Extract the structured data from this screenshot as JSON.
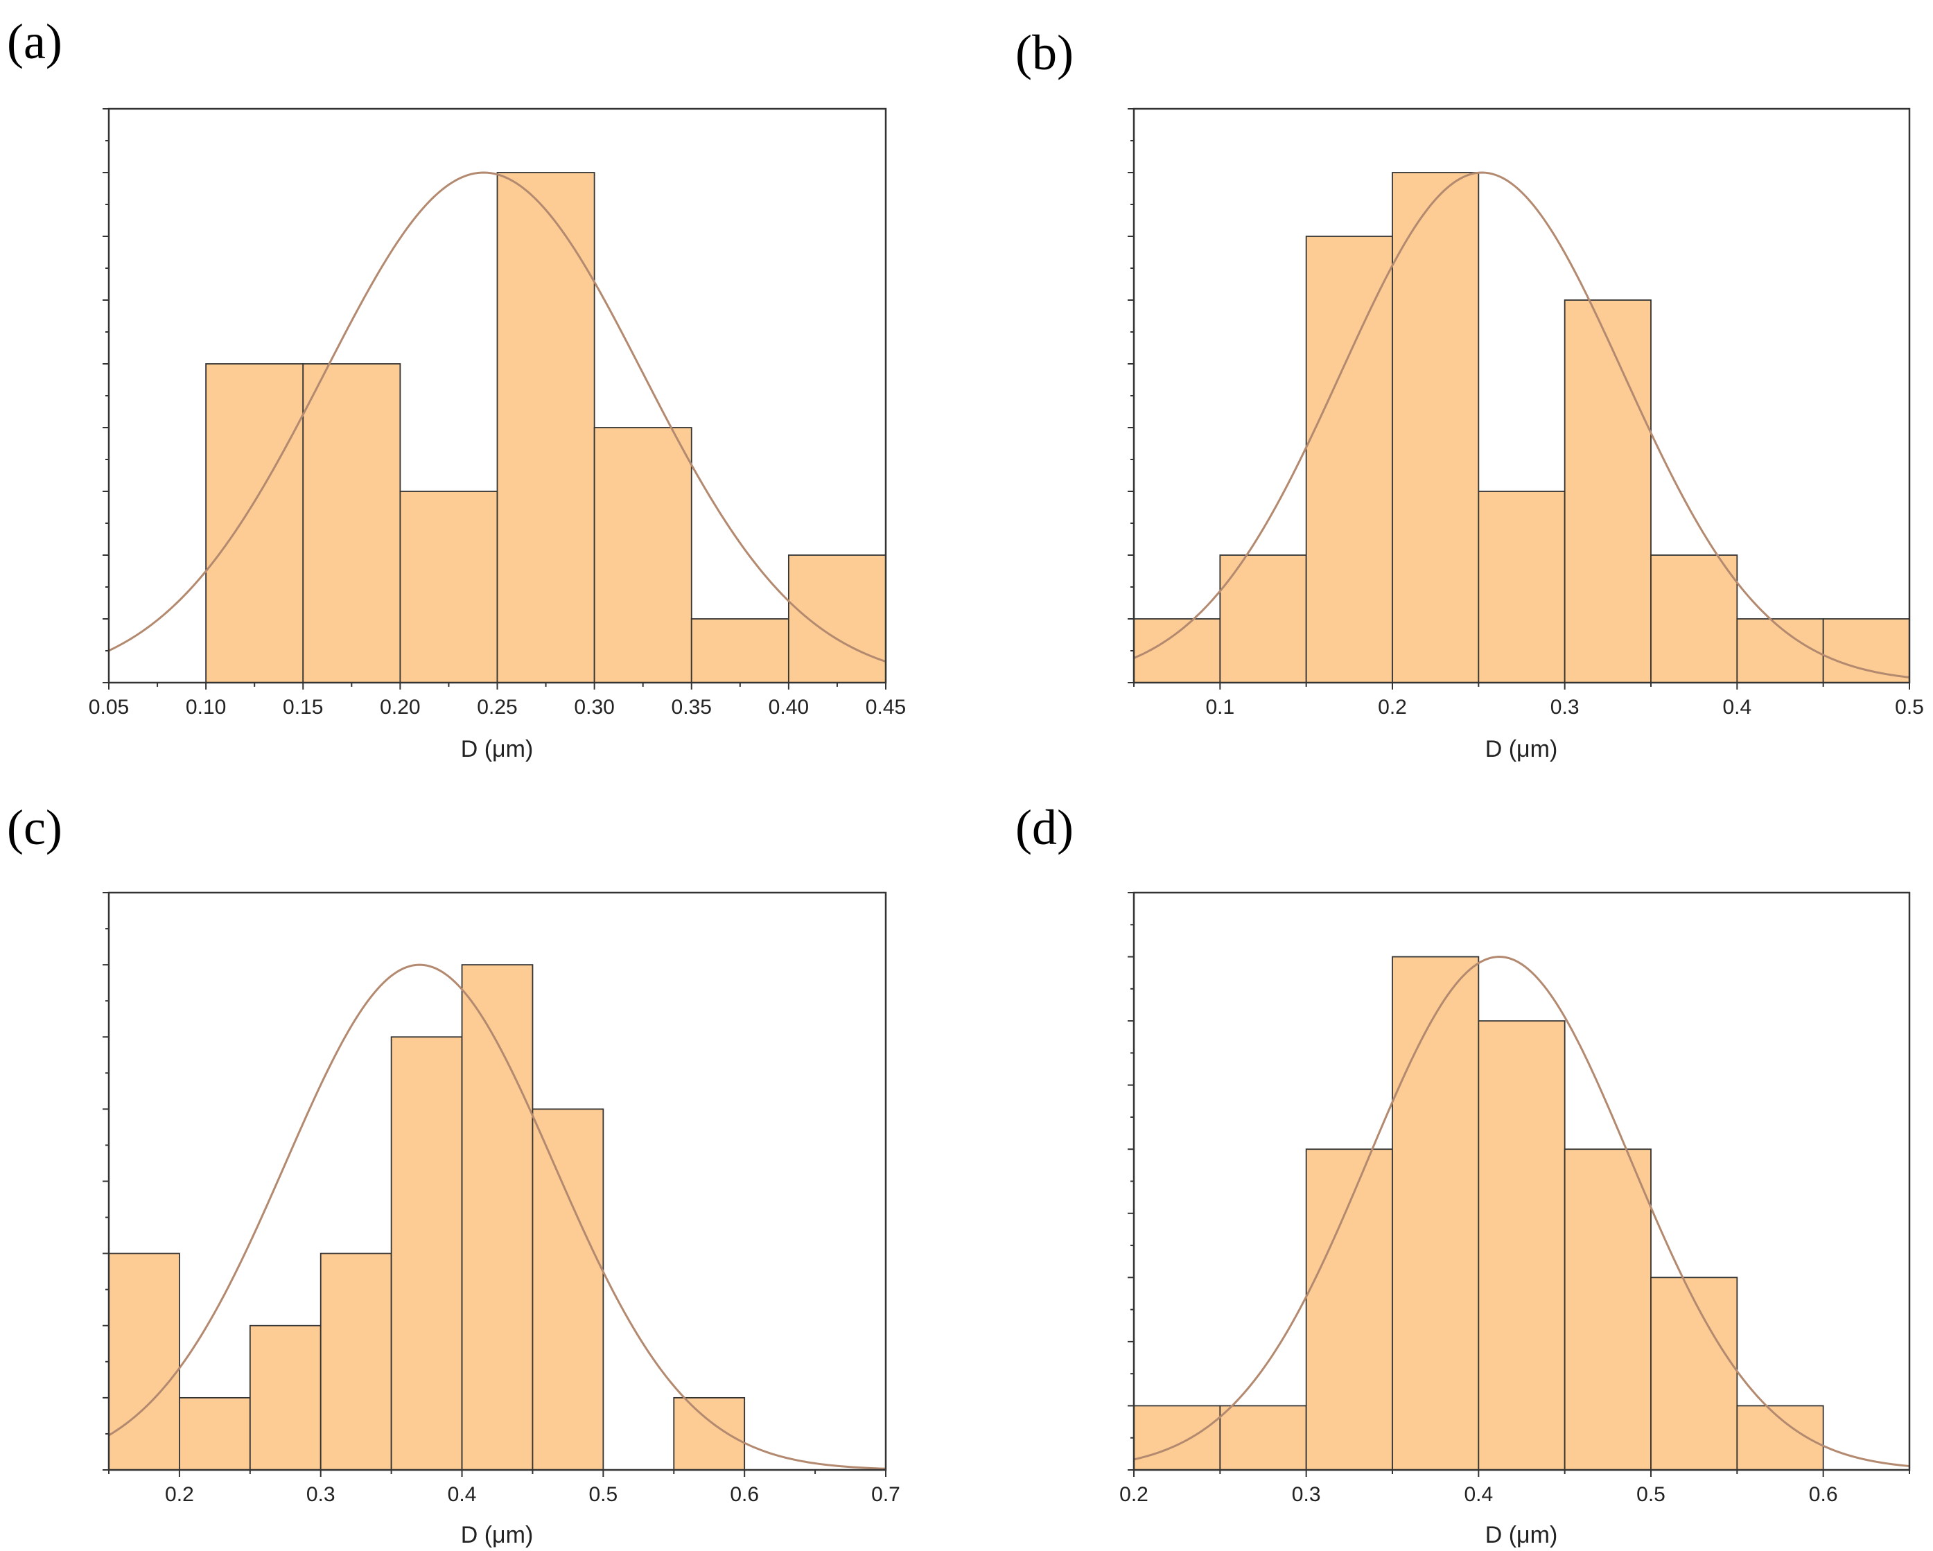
{
  "figure": {
    "colors": {
      "bar_fill": "#fdcc94",
      "bar_stroke": "#333333",
      "curve": "#b38a70",
      "frame": "#333333"
    }
  },
  "chart_data": [
    {
      "panel_label": "(a)",
      "type": "bar",
      "histogram": true,
      "bins": [
        [
          0.1,
          0.15
        ],
        [
          0.15,
          0.2
        ],
        [
          0.2,
          0.25
        ],
        [
          0.25,
          0.3
        ],
        [
          0.3,
          0.35
        ],
        [
          0.35,
          0.4
        ],
        [
          0.4,
          0.45
        ]
      ],
      "values": [
        5,
        5,
        3,
        8,
        4,
        1,
        2
      ],
      "xlim": [
        0.05,
        0.45
      ],
      "ylim": [
        0,
        9
      ],
      "xticks": [
        0.05,
        0.1,
        0.15,
        0.2,
        0.25,
        0.3,
        0.35,
        0.4,
        0.45
      ],
      "xtick_labels": [
        "0.05",
        "0.10",
        "0.15",
        "0.20",
        "0.25",
        "0.30",
        "0.35",
        "0.40",
        "0.45"
      ],
      "xlabel": "D (μm)",
      "ylabel": "",
      "fit_curve": {
        "type": "normal",
        "mean": 0.243,
        "sd": 0.082,
        "peak": 8
      }
    },
    {
      "panel_label": "(b)",
      "type": "bar",
      "histogram": true,
      "bins": [
        [
          0.05,
          0.1
        ],
        [
          0.1,
          0.15
        ],
        [
          0.15,
          0.2
        ],
        [
          0.2,
          0.25
        ],
        [
          0.25,
          0.3
        ],
        [
          0.3,
          0.35
        ],
        [
          0.35,
          0.4
        ],
        [
          0.4,
          0.45
        ],
        [
          0.45,
          0.5
        ]
      ],
      "values": [
        1,
        2,
        7,
        8,
        3,
        6,
        2,
        1,
        1
      ],
      "xlim": [
        0.05,
        0.5
      ],
      "ylim": [
        0,
        9
      ],
      "xticks": [
        0.1,
        0.2,
        0.3,
        0.4,
        0.5
      ],
      "xtick_labels": [
        "0.1",
        "0.2",
        "0.3",
        "0.4",
        "0.5"
      ],
      "xlabel": "D (μm)",
      "ylabel": "",
      "fit_curve": {
        "type": "normal",
        "mean": 0.252,
        "sd": 0.082,
        "peak": 8
      }
    },
    {
      "panel_label": "(c)",
      "type": "bar",
      "histogram": true,
      "bins": [
        [
          0.15,
          0.2
        ],
        [
          0.2,
          0.25
        ],
        [
          0.25,
          0.3
        ],
        [
          0.3,
          0.35
        ],
        [
          0.35,
          0.4
        ],
        [
          0.4,
          0.45
        ],
        [
          0.45,
          0.5
        ],
        [
          0.5,
          0.55
        ],
        [
          0.55,
          0.6
        ]
      ],
      "values": [
        3,
        1,
        2,
        3,
        6,
        7,
        5,
        0,
        1
      ],
      "xlim": [
        0.15,
        0.7
      ],
      "ylim": [
        0,
        8
      ],
      "xticks": [
        0.2,
        0.3,
        0.4,
        0.5,
        0.6,
        0.7
      ],
      "xtick_labels": [
        "0.2",
        "0.3",
        "0.4",
        "0.5",
        "0.6",
        "0.7"
      ],
      "xlabel": "D (μm)",
      "ylabel": "",
      "fit_curve": {
        "type": "normal",
        "mean": 0.37,
        "sd": 0.095,
        "peak": 7
      }
    },
    {
      "panel_label": "(d)",
      "type": "bar",
      "histogram": true,
      "bins": [
        [
          0.2,
          0.25
        ],
        [
          0.25,
          0.3
        ],
        [
          0.3,
          0.35
        ],
        [
          0.35,
          0.4
        ],
        [
          0.4,
          0.45
        ],
        [
          0.45,
          0.5
        ],
        [
          0.5,
          0.55
        ],
        [
          0.55,
          0.6
        ]
      ],
      "values": [
        1,
        1,
        5,
        8,
        7,
        5,
        3,
        1
      ],
      "xlim": [
        0.2,
        0.65
      ],
      "ylim": [
        0,
        9
      ],
      "xticks": [
        0.2,
        0.3,
        0.4,
        0.5,
        0.6
      ],
      "xtick_labels": [
        "0.2",
        "0.3",
        "0.4",
        "0.5",
        "0.6"
      ],
      "xlabel": "D (μm)",
      "ylabel": "",
      "fit_curve": {
        "type": "normal",
        "mean": 0.412,
        "sd": 0.076,
        "peak": 8
      }
    }
  ]
}
